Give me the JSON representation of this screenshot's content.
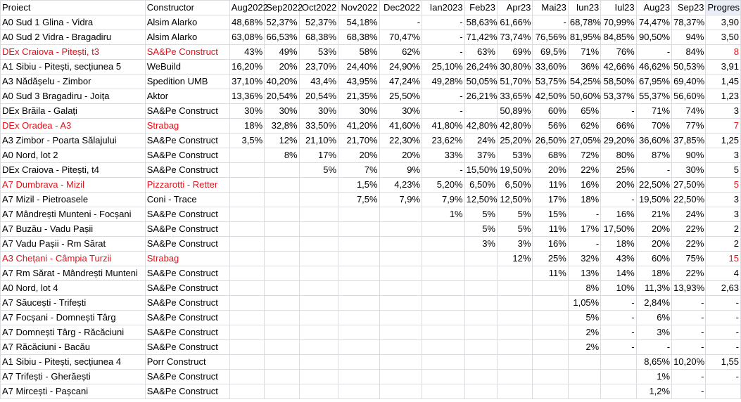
{
  "accent_color": "#e0121b",
  "headers": [
    "Proiect",
    "Constructor",
    "Aug2022",
    "Sep2022",
    "Oct2022",
    "Nov2022",
    "Dec2022",
    "Ian2023",
    "Feb23",
    "Apr23",
    "Mai23",
    "Iun23",
    "Iul23",
    "Aug23",
    "Sep23",
    "Progres"
  ],
  "rows": [
    {
      "highlight": false,
      "cells": [
        "A0 Sud 1 Glina - Vidra",
        "Alsim Alarko",
        "48,68%",
        "52,37%",
        "52,37%",
        "54,18%",
        "-",
        "-",
        "58,63%",
        "61,66%",
        "-",
        "68,78%",
        "70,99%",
        "74,47%",
        "78,37%",
        "3,90"
      ]
    },
    {
      "highlight": false,
      "cells": [
        "A0 Sud 2 Vidra - Bragadiru",
        "Alsim Alarko",
        "63,08%",
        "66,53%",
        "68,38%",
        "68,38%",
        "70,47%",
        "-",
        "71,42%",
        "73,74%",
        "76,56%",
        "81,95%",
        "84,85%",
        "90,50%",
        "94%",
        "3,50"
      ]
    },
    {
      "highlight": true,
      "cells": [
        "DEx Craiova - Pitești, t3",
        "SA&Pe Construct",
        "43%",
        "49%",
        "53%",
        "58%",
        "62%",
        "-",
        "63%",
        "69%",
        "69,5%",
        "71%",
        "76%",
        "-",
        "84%",
        "8"
      ]
    },
    {
      "highlight": false,
      "cells": [
        "A1 Sibiu - Pitești, secțiunea 5",
        "WeBuild",
        "16,20%",
        "20%",
        "23,70%",
        "24,40%",
        "24,90%",
        "25,10%",
        "26,24%",
        "30,80%",
        "33,60%",
        "36%",
        "42,66%",
        "46,62%",
        "50,53%",
        "3,91"
      ]
    },
    {
      "highlight": false,
      "cells": [
        "A3 Nădășelu - Zimbor",
        "Spedition UMB",
        "37,10%",
        "40,20%",
        "43,4%",
        "43,95%",
        "47,24%",
        "49,28%",
        "50,05%",
        "51,70%",
        "53,75%",
        "54,25%",
        "58,50%",
        "67,95%",
        "69,40%",
        "1,45"
      ]
    },
    {
      "highlight": false,
      "cells": [
        "A0 Sud 3 Bragadiru - Joița",
        "Aktor",
        "13,36%",
        "20,54%",
        "20,54%",
        "21,35%",
        "25,50%",
        "-",
        "26,21%",
        "33,65%",
        "42,50%",
        "50,60%",
        "53,37%",
        "55,37%",
        "56,60%",
        "1,23"
      ]
    },
    {
      "highlight": false,
      "cells": [
        "DEx Brăila - Galați",
        "SA&Pe Construct",
        "30%",
        "30%",
        "30%",
        "30%",
        "30%",
        "-",
        "",
        "50,89%",
        "60%",
        "65%",
        "-",
        "71%",
        "74%",
        "3"
      ]
    },
    {
      "highlight": true,
      "cells": [
        "DEx Oradea - A3",
        "Strabag",
        "18%",
        "32,8%",
        "33,50%",
        "41,20%",
        "41,60%",
        "41,80%",
        "42,80%",
        "42,80%",
        "56%",
        "62%",
        "66%",
        "70%",
        "77%",
        "7"
      ]
    },
    {
      "highlight": false,
      "cells": [
        "A3 Zimbor - Poarta Sălajului",
        "SA&Pe Construct",
        "3,5%",
        "12%",
        "21,10%",
        "21,70%",
        "22,30%",
        "23,62%",
        "24%",
        "25,20%",
        "26,50%",
        "27,05%",
        "29,20%",
        "36,60%",
        "37,85%",
        "1,25"
      ]
    },
    {
      "highlight": false,
      "cells": [
        "A0 Nord, lot 2",
        "SA&Pe Construct",
        "",
        "8%",
        "17%",
        "20%",
        "20%",
        "33%",
        "37%",
        "53%",
        "68%",
        "72%",
        "80%",
        "87%",
        "90%",
        "3"
      ]
    },
    {
      "highlight": false,
      "cells": [
        "DEx Craiova - Pitești, t4",
        "SA&Pe Construct",
        "",
        "",
        "5%",
        "7%",
        "9%",
        "-",
        "15,50%",
        "19,50%",
        "20%",
        "22%",
        "25%",
        "-",
        "30%",
        "5"
      ]
    },
    {
      "highlight": true,
      "cells": [
        "A7 Dumbrava - Mizil",
        "Pizzarotti - Retter",
        "",
        "",
        "",
        "1,5%",
        "4,23%",
        "5,20%",
        "6,50%",
        "6,50%",
        "11%",
        "16%",
        "20%",
        "22,50%",
        "27,50%",
        "5"
      ]
    },
    {
      "highlight": false,
      "cells": [
        "A7 Mizil - Pietroasele",
        "Coni - Trace",
        "",
        "",
        "",
        "7,5%",
        "7,9%",
        "7,9%",
        "12,50%",
        "12,50%",
        "17%",
        "18%",
        "-",
        "19,50%",
        "22,50%",
        "3"
      ]
    },
    {
      "highlight": false,
      "cells": [
        "A7 Mândrești Munteni - Focșani",
        "SA&Pe Construct",
        "",
        "",
        "",
        "",
        "",
        "1%",
        "5%",
        "5%",
        "15%",
        "-",
        "16%",
        "21%",
        "24%",
        "3"
      ]
    },
    {
      "highlight": false,
      "cells": [
        "A7 Buzău - Vadu Pașii",
        "SA&Pe Construct",
        "",
        "",
        "",
        "",
        "",
        "",
        "5%",
        "5%",
        "11%",
        "17%",
        "17,50%",
        "20%",
        "22%",
        "2"
      ]
    },
    {
      "highlight": false,
      "cells": [
        "A7 Vadu Pașii - Rm Sărat",
        "SA&Pe Construct",
        "",
        "",
        "",
        "",
        "",
        "",
        "3%",
        "3%",
        "16%",
        "-",
        "18%",
        "20%",
        "22%",
        "2"
      ]
    },
    {
      "highlight": true,
      "cells": [
        "A3 Chețani - Câmpia Turzii",
        "Strabag",
        "",
        "",
        "",
        "",
        "",
        "",
        "",
        "12%",
        "25%",
        "32%",
        "43%",
        "60%",
        "75%",
        "15"
      ]
    },
    {
      "highlight": false,
      "cells": [
        "A7 Rm Sărat - Mândrești Munteni",
        "SA&Pe Construct",
        "",
        "",
        "",
        "",
        "",
        "",
        "",
        "",
        "11%",
        "13%",
        "14%",
        "18%",
        "22%",
        "4"
      ]
    },
    {
      "highlight": false,
      "cells": [
        "A0 Nord, lot 4",
        "SA&Pe Construct",
        "",
        "",
        "",
        "",
        "",
        "",
        "",
        "",
        "",
        "8%",
        "10%",
        "11,3%",
        "13,93%",
        "2,63"
      ]
    },
    {
      "highlight": false,
      "cells": [
        "A7 Săucești - Trifești",
        "SA&Pe Construct",
        "",
        "",
        "",
        "",
        "",
        "",
        "",
        "",
        "",
        "1,05%",
        "-",
        "2,84%",
        "-",
        "-"
      ]
    },
    {
      "highlight": false,
      "cells": [
        "A7 Focșani - Domnești Târg",
        "SA&Pe Construct",
        "",
        "",
        "",
        "",
        "",
        "",
        "",
        "",
        "",
        "5%",
        "-",
        "6%",
        "-",
        "-"
      ]
    },
    {
      "highlight": false,
      "cells": [
        "A7 Domnești Târg - Răcăciuni",
        "SA&Pe Construct",
        "",
        "",
        "",
        "",
        "",
        "",
        "",
        "",
        "",
        "2%",
        "-",
        "3%",
        "-",
        "-"
      ]
    },
    {
      "highlight": false,
      "cells": [
        "A7 Răcăciuni - Bacău",
        "SA&Pe Construct",
        "",
        "",
        "",
        "",
        "",
        "",
        "",
        "",
        "",
        "2%",
        "-",
        "-",
        "-",
        "-"
      ]
    },
    {
      "highlight": false,
      "cells": [
        "A1 Sibiu - Pitești, secțiunea 4",
        "Porr Construct",
        "",
        "",
        "",
        "",
        "",
        "",
        "",
        "",
        "",
        "",
        "",
        "8,65%",
        "10,20%",
        "1,55"
      ]
    },
    {
      "highlight": false,
      "cells": [
        "A7 Trifești - Gherăești",
        "SA&Pe Construct",
        "",
        "",
        "",
        "",
        "",
        "",
        "",
        "",
        "",
        "",
        "",
        "1%",
        "-",
        "-"
      ]
    },
    {
      "highlight": false,
      "cells": [
        "A7 Mircești - Pașcani",
        "SA&Pe Construct",
        "",
        "",
        "",
        "",
        "",
        "",
        "",
        "",
        "",
        "",
        "",
        "1,2%",
        "-",
        ""
      ]
    }
  ]
}
